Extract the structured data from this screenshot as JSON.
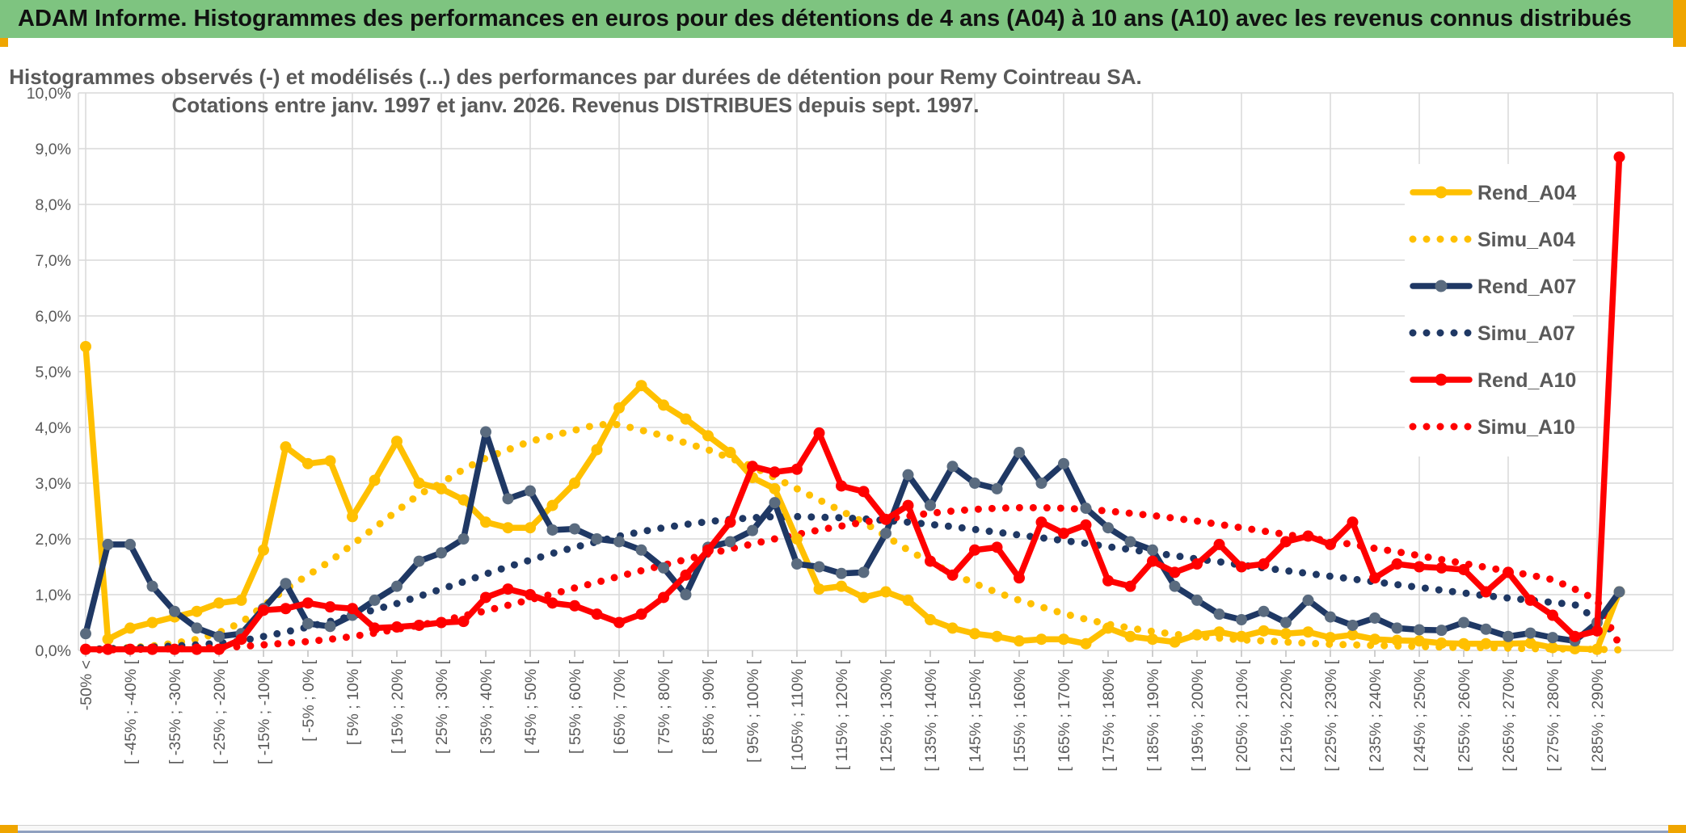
{
  "header": {
    "title": "ADAM Informe. Histogrammes des performances en euros pour des détentions de 4 ans (A04) à 10 ans (A10) avec les revenus connus distribués"
  },
  "colors": {
    "header_bg": "#7ec480",
    "accent": "#efa500",
    "grid": "#d9d9d9",
    "axis_text": "#595959",
    "yellow": "#FFC000",
    "navy": "#1F3864",
    "navy_marker": "#5A6B7F",
    "red": "#FF0000"
  },
  "chart_data": {
    "type": "line",
    "title_line1": "Histogrammes observés (-) et modélisés (...) des performances par durées de détention pour Remy Cointreau SA.",
    "title_line2": "Cotations entre janv. 1997 et janv. 2026. Revenus DISTRIBUES depuis sept. 1997.",
    "ylim": [
      0,
      10
    ],
    "ytick_labels": [
      "0,0%",
      "1,0%",
      "2,0%",
      "3,0%",
      "4,0%",
      "5,0%",
      "6,0%",
      "7,0%",
      "8,0%",
      "9,0%",
      "10,0%"
    ],
    "grid": true,
    "legend_position": "right-inside",
    "categories": [
      "-50% <",
      "",
      "[ -45% ; -40% [",
      "",
      "[ -35% ; -30% [",
      "",
      "[ -25% ; -20% [",
      "",
      "[ -15% ; -10% [",
      "",
      "[ -5% ; 0% [",
      "",
      "[ 5% ; 10% [",
      "",
      "[ 15% ; 20% [",
      "",
      "[ 25% ; 30% [",
      "",
      "[ 35% ; 40% [",
      "",
      "[ 45% ; 50% [",
      "",
      "[ 55% ; 60% [",
      "",
      "[ 65% ; 70% [",
      "",
      "[ 75% ; 80% [",
      "",
      "[ 85% ; 90% [",
      "",
      "[ 95% ; 100% [",
      "",
      "[ 105% ; 110% [",
      "",
      "[ 115% ; 120% [",
      "",
      "[ 125% ; 130% [",
      "",
      "[ 135% ; 140% [",
      "",
      "[ 145% ; 150% [",
      "",
      "[ 155% ; 160% [",
      "",
      "[ 165% ; 170% [",
      "",
      "[ 175% ; 180% [",
      "",
      "[ 185% ; 190% [",
      "",
      "[ 195% ; 200% [",
      "",
      "[ 205% ; 210% [",
      "",
      "[ 215% ; 220% [",
      "",
      "[ 225% ; 230% [",
      "",
      "[ 235% ; 240% [",
      "",
      "[ 245% ; 250% [",
      "",
      "[ 255% ; 260% [",
      "",
      "[ 265% ; 270% [",
      "",
      "[ 275% ; 280% [",
      "",
      "[ 285% ; 290% [",
      ""
    ],
    "series": [
      {
        "name": "Simu_A04",
        "style": "dotted",
        "color": "#FFC000",
        "values": [
          0.02,
          0.03,
          0.05,
          0.08,
          0.13,
          0.2,
          0.32,
          0.5,
          0.8,
          1.1,
          1.35,
          1.6,
          1.9,
          2.2,
          2.5,
          2.8,
          3.0,
          3.25,
          3.45,
          3.6,
          3.75,
          3.85,
          3.95,
          4.05,
          4.05,
          3.95,
          3.85,
          3.72,
          3.6,
          3.45,
          3.3,
          3.1,
          2.9,
          2.7,
          2.5,
          2.3,
          2.05,
          1.8,
          1.58,
          1.38,
          1.2,
          1.04,
          0.9,
          0.78,
          0.66,
          0.56,
          0.47,
          0.4,
          0.34,
          0.29,
          0.25,
          0.22,
          0.19,
          0.17,
          0.15,
          0.13,
          0.11,
          0.1,
          0.09,
          0.08,
          0.07,
          0.06,
          0.05,
          0.05,
          0.04,
          0.03,
          0.03,
          0.02,
          0.02,
          0.01
        ]
      },
      {
        "name": "Simu_A07",
        "style": "dotted",
        "color": "#1F3864",
        "values": [
          0.02,
          0.03,
          0.04,
          0.06,
          0.08,
          0.1,
          0.13,
          0.17,
          0.25,
          0.33,
          0.42,
          0.52,
          0.62,
          0.73,
          0.84,
          0.97,
          1.1,
          1.23,
          1.37,
          1.5,
          1.62,
          1.74,
          1.85,
          1.95,
          2.05,
          2.13,
          2.2,
          2.26,
          2.31,
          2.35,
          2.38,
          2.4,
          2.4,
          2.39,
          2.38,
          2.36,
          2.33,
          2.3,
          2.26,
          2.22,
          2.17,
          2.12,
          2.07,
          2.02,
          1.97,
          1.92,
          1.86,
          1.81,
          1.75,
          1.7,
          1.64,
          1.59,
          1.53,
          1.48,
          1.43,
          1.38,
          1.33,
          1.28,
          1.23,
          1.18,
          1.13,
          1.08,
          1.03,
          0.98,
          0.94,
          0.9,
          0.86,
          0.82,
          0.55,
          0.25
        ]
      },
      {
        "name": "Simu_A10",
        "style": "dotted",
        "color": "#FF0000",
        "values": [
          0.01,
          0.01,
          0.02,
          0.02,
          0.03,
          0.04,
          0.05,
          0.07,
          0.1,
          0.13,
          0.16,
          0.2,
          0.25,
          0.31,
          0.38,
          0.45,
          0.53,
          0.62,
          0.71,
          0.81,
          0.91,
          1.01,
          1.12,
          1.22,
          1.33,
          1.43,
          1.53,
          1.63,
          1.73,
          1.82,
          1.91,
          2.0,
          2.08,
          2.16,
          2.23,
          2.3,
          2.36,
          2.41,
          2.46,
          2.5,
          2.53,
          2.55,
          2.56,
          2.56,
          2.55,
          2.53,
          2.5,
          2.46,
          2.42,
          2.37,
          2.32,
          2.26,
          2.2,
          2.14,
          2.08,
          2.02,
          1.96,
          1.9,
          1.83,
          1.77,
          1.7,
          1.63,
          1.56,
          1.49,
          1.42,
          1.35,
          1.27,
          1.1,
          0.9,
          0.1
        ]
      },
      {
        "name": "Rend_A04",
        "style": "solid",
        "color": "#FFC000",
        "marker": "#FFC000",
        "values": [
          5.45,
          0.2,
          0.4,
          0.5,
          0.6,
          0.7,
          0.85,
          0.9,
          1.8,
          3.65,
          3.35,
          3.4,
          2.4,
          3.05,
          3.75,
          3.0,
          2.9,
          2.7,
          2.3,
          2.2,
          2.2,
          2.6,
          3.0,
          3.6,
          4.35,
          4.75,
          4.4,
          4.15,
          3.85,
          3.55,
          3.1,
          2.9,
          2.0,
          1.1,
          1.15,
          0.95,
          1.05,
          0.9,
          0.55,
          0.4,
          0.3,
          0.25,
          0.17,
          0.2,
          0.2,
          0.12,
          0.4,
          0.25,
          0.2,
          0.15,
          0.28,
          0.33,
          0.25,
          0.35,
          0.3,
          0.33,
          0.23,
          0.28,
          0.2,
          0.18,
          0.17,
          0.13,
          0.12,
          0.12,
          0.12,
          0.13,
          0.05,
          0.03,
          0.02,
          1.05
        ]
      },
      {
        "name": "Rend_A07",
        "style": "solid",
        "color": "#1F3864",
        "marker": "#5A6B7F",
        "values": [
          0.3,
          1.9,
          1.9,
          1.15,
          0.7,
          0.4,
          0.25,
          0.3,
          0.75,
          1.2,
          0.48,
          0.43,
          0.63,
          0.9,
          1.15,
          1.6,
          1.75,
          2.0,
          3.92,
          2.72,
          2.86,
          2.16,
          2.18,
          2.0,
          1.95,
          1.8,
          1.48,
          1.0,
          1.85,
          1.95,
          2.15,
          2.65,
          1.55,
          1.5,
          1.38,
          1.4,
          2.1,
          3.15,
          2.6,
          3.3,
          3.0,
          2.9,
          3.55,
          3.0,
          3.35,
          2.55,
          2.2,
          1.95,
          1.8,
          1.15,
          0.9,
          0.65,
          0.55,
          0.7,
          0.5,
          0.9,
          0.6,
          0.45,
          0.58,
          0.4,
          0.37,
          0.36,
          0.5,
          0.38,
          0.25,
          0.31,
          0.23,
          0.17,
          0.5,
          1.05
        ]
      },
      {
        "name": "Rend_A10",
        "style": "solid",
        "color": "#FF0000",
        "marker": "#FF0000",
        "values": [
          0.02,
          0.02,
          0.02,
          0.02,
          0.02,
          0.02,
          0.02,
          0.2,
          0.72,
          0.75,
          0.85,
          0.78,
          0.75,
          0.4,
          0.42,
          0.45,
          0.5,
          0.52,
          0.95,
          1.1,
          1.0,
          0.85,
          0.8,
          0.65,
          0.5,
          0.65,
          0.95,
          1.35,
          1.8,
          2.3,
          3.3,
          3.2,
          3.25,
          3.9,
          2.95,
          2.85,
          2.35,
          2.6,
          1.6,
          1.35,
          1.8,
          1.85,
          1.3,
          2.3,
          2.1,
          2.25,
          1.25,
          1.15,
          1.6,
          1.4,
          1.55,
          1.9,
          1.5,
          1.55,
          1.95,
          2.05,
          1.9,
          2.3,
          1.3,
          1.55,
          1.5,
          1.48,
          1.45,
          1.05,
          1.4,
          0.9,
          0.63,
          0.25,
          0.35,
          8.85
        ]
      }
    ],
    "legend_order": [
      "Rend_A04",
      "Simu_A04",
      "Rend_A07",
      "Simu_A07",
      "Rend_A10",
      "Simu_A10"
    ]
  }
}
